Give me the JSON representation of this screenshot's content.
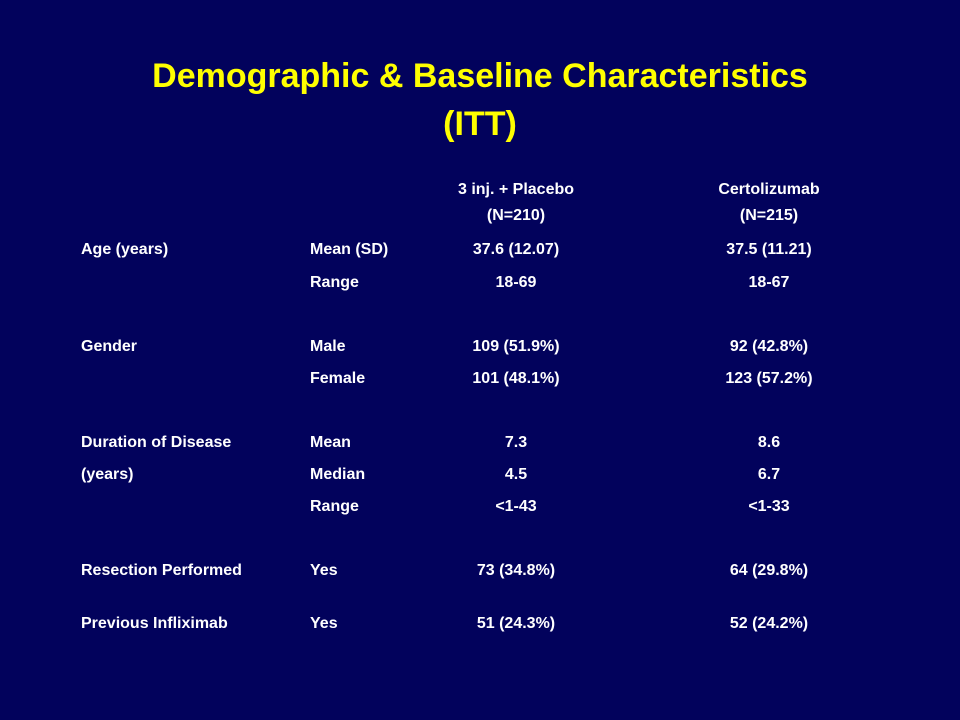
{
  "title": {
    "line1": "Demographic & Baseline Characteristics",
    "line2": "(ITT)"
  },
  "columns": [
    {
      "name": "3 inj. + Placebo",
      "n": "(N=210)"
    },
    {
      "name": "Certolizumab",
      "n": "(N=215)"
    }
  ],
  "rows": [
    {
      "label": "Age (years)",
      "sub": "Mean (SD)",
      "v1": "37.6 (12.07)",
      "v2": "37.5 (11.21)"
    },
    {
      "label": "",
      "sub": "Range",
      "v1": "18-69",
      "v2": "18-67"
    },
    {
      "label": "Gender",
      "sub": "Male",
      "v1": "109 (51.9%)",
      "v2": "92 (42.8%)"
    },
    {
      "label": "",
      "sub": "Female",
      "v1": "101 (48.1%)",
      "v2": "123 (57.2%)"
    },
    {
      "label": "Duration of Disease",
      "sub": "Mean",
      "v1": "7.3",
      "v2": "8.6"
    },
    {
      "label": "(years)",
      "sub": "Median",
      "v1": "4.5",
      "v2": "6.7"
    },
    {
      "label": "",
      "sub": "Range",
      "v1": "<1-43",
      "v2": "<1-33"
    },
    {
      "label": "Resection Performed",
      "sub": "Yes",
      "v1": "73 (34.8%)",
      "v2": "64 (29.8%)"
    },
    {
      "label": "Previous Infliximab",
      "sub": "Yes",
      "v1": "51 (24.3%)",
      "v2": "52 (24.2%)"
    }
  ]
}
